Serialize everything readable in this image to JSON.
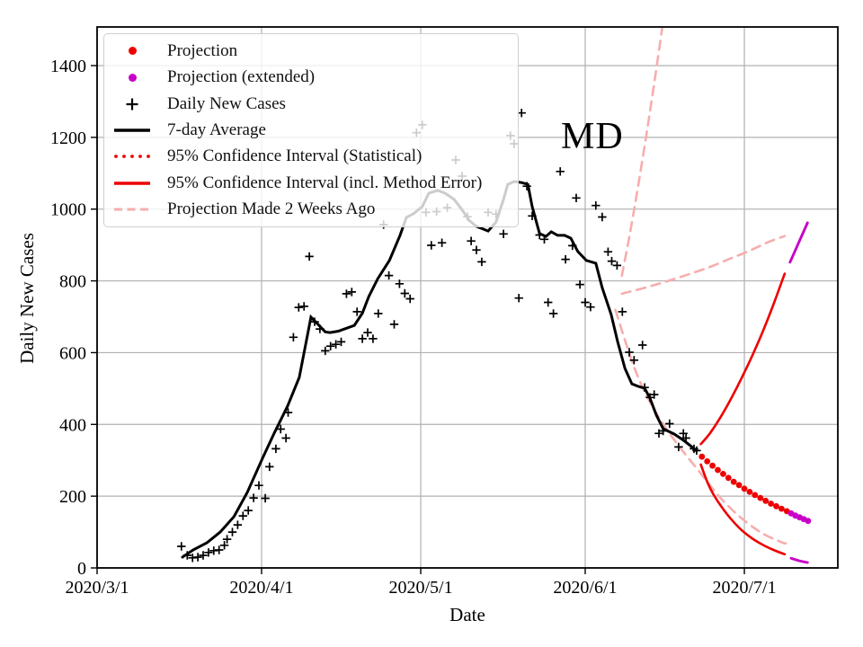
{
  "annotation": {
    "state_label": "MD"
  },
  "legend": {
    "items": [
      {
        "label": "Projection",
        "marker": "dot",
        "color": "#ee0000"
      },
      {
        "label": "Projection (extended)",
        "marker": "dot",
        "color": "#c800c8"
      },
      {
        "label": "Daily New Cases",
        "marker": "plus",
        "color": "#000000"
      },
      {
        "label": "7-day Average",
        "marker": "solid",
        "color": "#000000"
      },
      {
        "label": "95% Confidence Interval (Statistical)",
        "marker": "dotted",
        "color": "#ee0000"
      },
      {
        "label": "95% Confidence Interval (incl. Method Error)",
        "marker": "solid",
        "color": "#ee0000"
      },
      {
        "label": "Projection Made 2 Weeks Ago",
        "marker": "dashed",
        "color": "#f7adad"
      }
    ]
  },
  "chart_data": {
    "type": "line",
    "title": "MD",
    "x_axis": {
      "label": "Date",
      "note": "day = days since 2020-03-01",
      "ticks": [
        {
          "label": "2020/3/1",
          "day": 0
        },
        {
          "label": "2020/4/1",
          "day": 31
        },
        {
          "label": "2020/5/1",
          "day": 61
        },
        {
          "label": "2020/6/1",
          "day": 92
        },
        {
          "label": "2020/7/1",
          "day": 122
        }
      ],
      "range_days": [
        0,
        139.6
      ]
    },
    "y_axis": {
      "label": "Daily New Cases",
      "ticks": [
        0,
        200,
        400,
        600,
        800,
        1000,
        1200,
        1400
      ],
      "range": [
        0,
        1508
      ]
    },
    "grid": true,
    "legend_position": "upper left",
    "colors": {
      "projection": "#ee0000",
      "projection_extended": "#c800c8",
      "daily_cases": "#000000",
      "avg7": "#000000",
      "confidence_interval": "#ee0000",
      "prior_projection": "#f7adad",
      "grid": "#b0b0b0"
    },
    "series": {
      "avg7": [
        [
          16.1,
          30
        ],
        [
          18.1,
          50
        ],
        [
          20.7,
          70
        ],
        [
          23.2,
          100
        ],
        [
          25.8,
          143
        ],
        [
          28.3,
          210
        ],
        [
          31.2,
          306
        ],
        [
          33.4,
          376
        ],
        [
          35.9,
          451
        ],
        [
          38.1,
          531
        ],
        [
          39.3,
          621
        ],
        [
          40.3,
          699
        ],
        [
          41.5,
          681
        ],
        [
          43,
          658
        ],
        [
          43.9,
          656
        ],
        [
          45.5,
          660
        ],
        [
          47,
          668
        ],
        [
          48.5,
          676
        ],
        [
          50,
          710
        ],
        [
          51.2,
          756
        ],
        [
          52.9,
          806
        ],
        [
          55.1,
          857
        ],
        [
          57.1,
          927
        ],
        [
          58.3,
          977
        ],
        [
          59.6,
          987
        ],
        [
          61.3,
          1007
        ],
        [
          62.5,
          1044
        ],
        [
          64.2,
          1052
        ],
        [
          65.6,
          1044
        ],
        [
          67.3,
          1027
        ],
        [
          69,
          994
        ],
        [
          70.1,
          969
        ],
        [
          71.5,
          952
        ],
        [
          73.7,
          939
        ],
        [
          75.2,
          964
        ],
        [
          76.6,
          1027
        ],
        [
          77.4,
          1069
        ],
        [
          78.6,
          1077
        ],
        [
          80,
          1074
        ],
        [
          81.2,
          1069
        ],
        [
          82,
          1007
        ],
        [
          83.4,
          932
        ],
        [
          84.6,
          924
        ],
        [
          85.6,
          937
        ],
        [
          86.8,
          927
        ],
        [
          88.1,
          927
        ],
        [
          89.3,
          919
        ],
        [
          90.6,
          882
        ],
        [
          92.2,
          857
        ],
        [
          94,
          849
        ],
        [
          95.2,
          781
        ],
        [
          96.9,
          706
        ],
        [
          98.1,
          631
        ],
        [
          99.5,
          556
        ],
        [
          100.8,
          513
        ],
        [
          102,
          506
        ],
        [
          103.2,
          501
        ],
        [
          104.2,
          473
        ],
        [
          105.4,
          426
        ],
        [
          106.7,
          388
        ],
        [
          108.8,
          373
        ],
        [
          110.5,
          356
        ],
        [
          111.8,
          341
        ],
        [
          113,
          326
        ]
      ],
      "daily": [
        [
          15.9,
          60
        ],
        [
          17,
          35
        ],
        [
          18,
          28
        ],
        [
          19,
          30
        ],
        [
          20,
          35
        ],
        [
          21,
          43
        ],
        [
          22,
          48
        ],
        [
          23,
          50
        ],
        [
          24,
          63
        ],
        [
          24.5,
          80
        ],
        [
          25.5,
          100
        ],
        [
          26.5,
          120
        ],
        [
          27.5,
          145
        ],
        [
          28.5,
          160
        ],
        [
          29.5,
          195
        ],
        [
          30.5,
          230
        ],
        [
          31.7,
          194
        ],
        [
          32.5,
          282
        ],
        [
          33.7,
          332
        ],
        [
          34.6,
          387
        ],
        [
          35.6,
          362
        ],
        [
          36,
          433
        ],
        [
          37,
          643
        ],
        [
          38,
          726
        ],
        [
          39,
          729
        ],
        [
          40,
          868
        ],
        [
          41,
          686
        ],
        [
          42,
          666
        ],
        [
          43,
          605
        ],
        [
          44,
          618
        ],
        [
          45,
          623
        ],
        [
          46,
          630
        ],
        [
          47,
          764
        ],
        [
          48,
          769
        ],
        [
          49,
          714
        ],
        [
          50,
          639
        ],
        [
          51,
          656
        ],
        [
          52,
          639
        ],
        [
          53,
          709
        ],
        [
          54,
          957
        ],
        [
          55,
          815
        ],
        [
          56,
          679
        ],
        [
          57,
          792
        ],
        [
          58,
          765
        ],
        [
          59,
          750
        ],
        [
          60.2,
          1213
        ],
        [
          61.3,
          1235
        ],
        [
          62,
          991
        ],
        [
          63,
          899
        ],
        [
          64,
          993
        ],
        [
          65,
          906
        ],
        [
          66,
          1004
        ],
        [
          67.6,
          1137
        ],
        [
          68.8,
          1092
        ],
        [
          69.8,
          979
        ],
        [
          70.5,
          911
        ],
        [
          71.5,
          886
        ],
        [
          72.5,
          853
        ],
        [
          73.7,
          991
        ],
        [
          75.2,
          986
        ],
        [
          76.6,
          931
        ],
        [
          77.9,
          1205
        ],
        [
          78.6,
          1182
        ],
        [
          79.5,
          752
        ],
        [
          80,
          1268
        ],
        [
          81,
          1064
        ],
        [
          82,
          981
        ],
        [
          83.4,
          928
        ],
        [
          84.3,
          916
        ],
        [
          85,
          740
        ],
        [
          86,
          709
        ],
        [
          87.3,
          1105
        ],
        [
          88.3,
          860
        ],
        [
          89.6,
          898
        ],
        [
          90.3,
          1031
        ],
        [
          91,
          790
        ],
        [
          92,
          740
        ],
        [
          93,
          727
        ],
        [
          94,
          1010
        ],
        [
          95.2,
          978
        ],
        [
          96.3,
          881
        ],
        [
          97,
          855
        ],
        [
          98,
          843
        ],
        [
          99,
          714
        ],
        [
          100.3,
          601
        ],
        [
          101.2,
          579
        ],
        [
          102.8,
          621
        ],
        [
          103.2,
          503
        ],
        [
          104.2,
          475
        ],
        [
          105,
          483
        ],
        [
          105.9,
          375
        ],
        [
          106.7,
          382
        ],
        [
          107.9,
          402
        ],
        [
          109.6,
          337
        ],
        [
          110.5,
          375
        ],
        [
          111,
          362
        ],
        [
          112.5,
          332
        ],
        [
          113,
          327
        ]
      ],
      "projection": [
        [
          114,
          310
        ],
        [
          115,
          297
        ],
        [
          116,
          285
        ],
        [
          117,
          273
        ],
        [
          118,
          262
        ],
        [
          119,
          251
        ],
        [
          120,
          240
        ],
        [
          121,
          231
        ],
        [
          122,
          221
        ],
        [
          123,
          212
        ],
        [
          124,
          203
        ],
        [
          125,
          195
        ],
        [
          126,
          187
        ],
        [
          127,
          179
        ],
        [
          128,
          172
        ],
        [
          129,
          165
        ],
        [
          130,
          158
        ]
      ],
      "projection_extended": [
        [
          130.8,
          152
        ],
        [
          131.6,
          146
        ],
        [
          132.4,
          141
        ],
        [
          133.2,
          136
        ],
        [
          134,
          131
        ]
      ],
      "ci_statistical": [],
      "ci_upper": [
        [
          113.8,
          345
        ],
        [
          115.5,
          375
        ],
        [
          117.5,
          420
        ],
        [
          119.5,
          472
        ],
        [
          121.5,
          530
        ],
        [
          123.5,
          592
        ],
        [
          125.5,
          660
        ],
        [
          127.5,
          735
        ],
        [
          129.6,
          820
        ]
      ],
      "ci_upper_extended": [
        [
          130.6,
          852
        ],
        [
          132.2,
          905
        ],
        [
          133.9,
          962
        ]
      ],
      "ci_lower": [
        [
          113.8,
          288
        ],
        [
          115,
          240
        ],
        [
          116.2,
          204
        ],
        [
          117.8,
          168
        ],
        [
          119.5,
          136
        ],
        [
          121.5,
          105
        ],
        [
          123.5,
          82
        ],
        [
          125.5,
          64
        ],
        [
          127.5,
          50
        ],
        [
          129.6,
          38
        ]
      ],
      "ci_lower_extended": [
        [
          130.8,
          27
        ],
        [
          132.3,
          20
        ],
        [
          133.9,
          15
        ]
      ],
      "prior_projection_upper": [
        [
          98.9,
          814
        ],
        [
          100.4,
          930
        ],
        [
          101.9,
          1058
        ],
        [
          103.4,
          1195
        ],
        [
          104.9,
          1340
        ],
        [
          106.9,
          1545
        ]
      ],
      "prior_projection_mid": [
        [
          98.9,
          764
        ],
        [
          103,
          780
        ],
        [
          107,
          797
        ],
        [
          111,
          816
        ],
        [
          115,
          836
        ],
        [
          119,
          860
        ],
        [
          123,
          884
        ],
        [
          126.5,
          908
        ],
        [
          129.6,
          925
        ]
      ],
      "prior_projection_lower": [
        [
          97.7,
          719
        ],
        [
          100.3,
          598
        ],
        [
          102,
          531
        ],
        [
          104,
          468
        ],
        [
          106.7,
          401
        ],
        [
          109.9,
          335
        ],
        [
          113.8,
          263
        ],
        [
          117.2,
          200
        ],
        [
          121.1,
          143
        ],
        [
          125.2,
          98
        ],
        [
          128.8,
          73
        ],
        [
          129.8,
          68
        ]
      ]
    }
  }
}
